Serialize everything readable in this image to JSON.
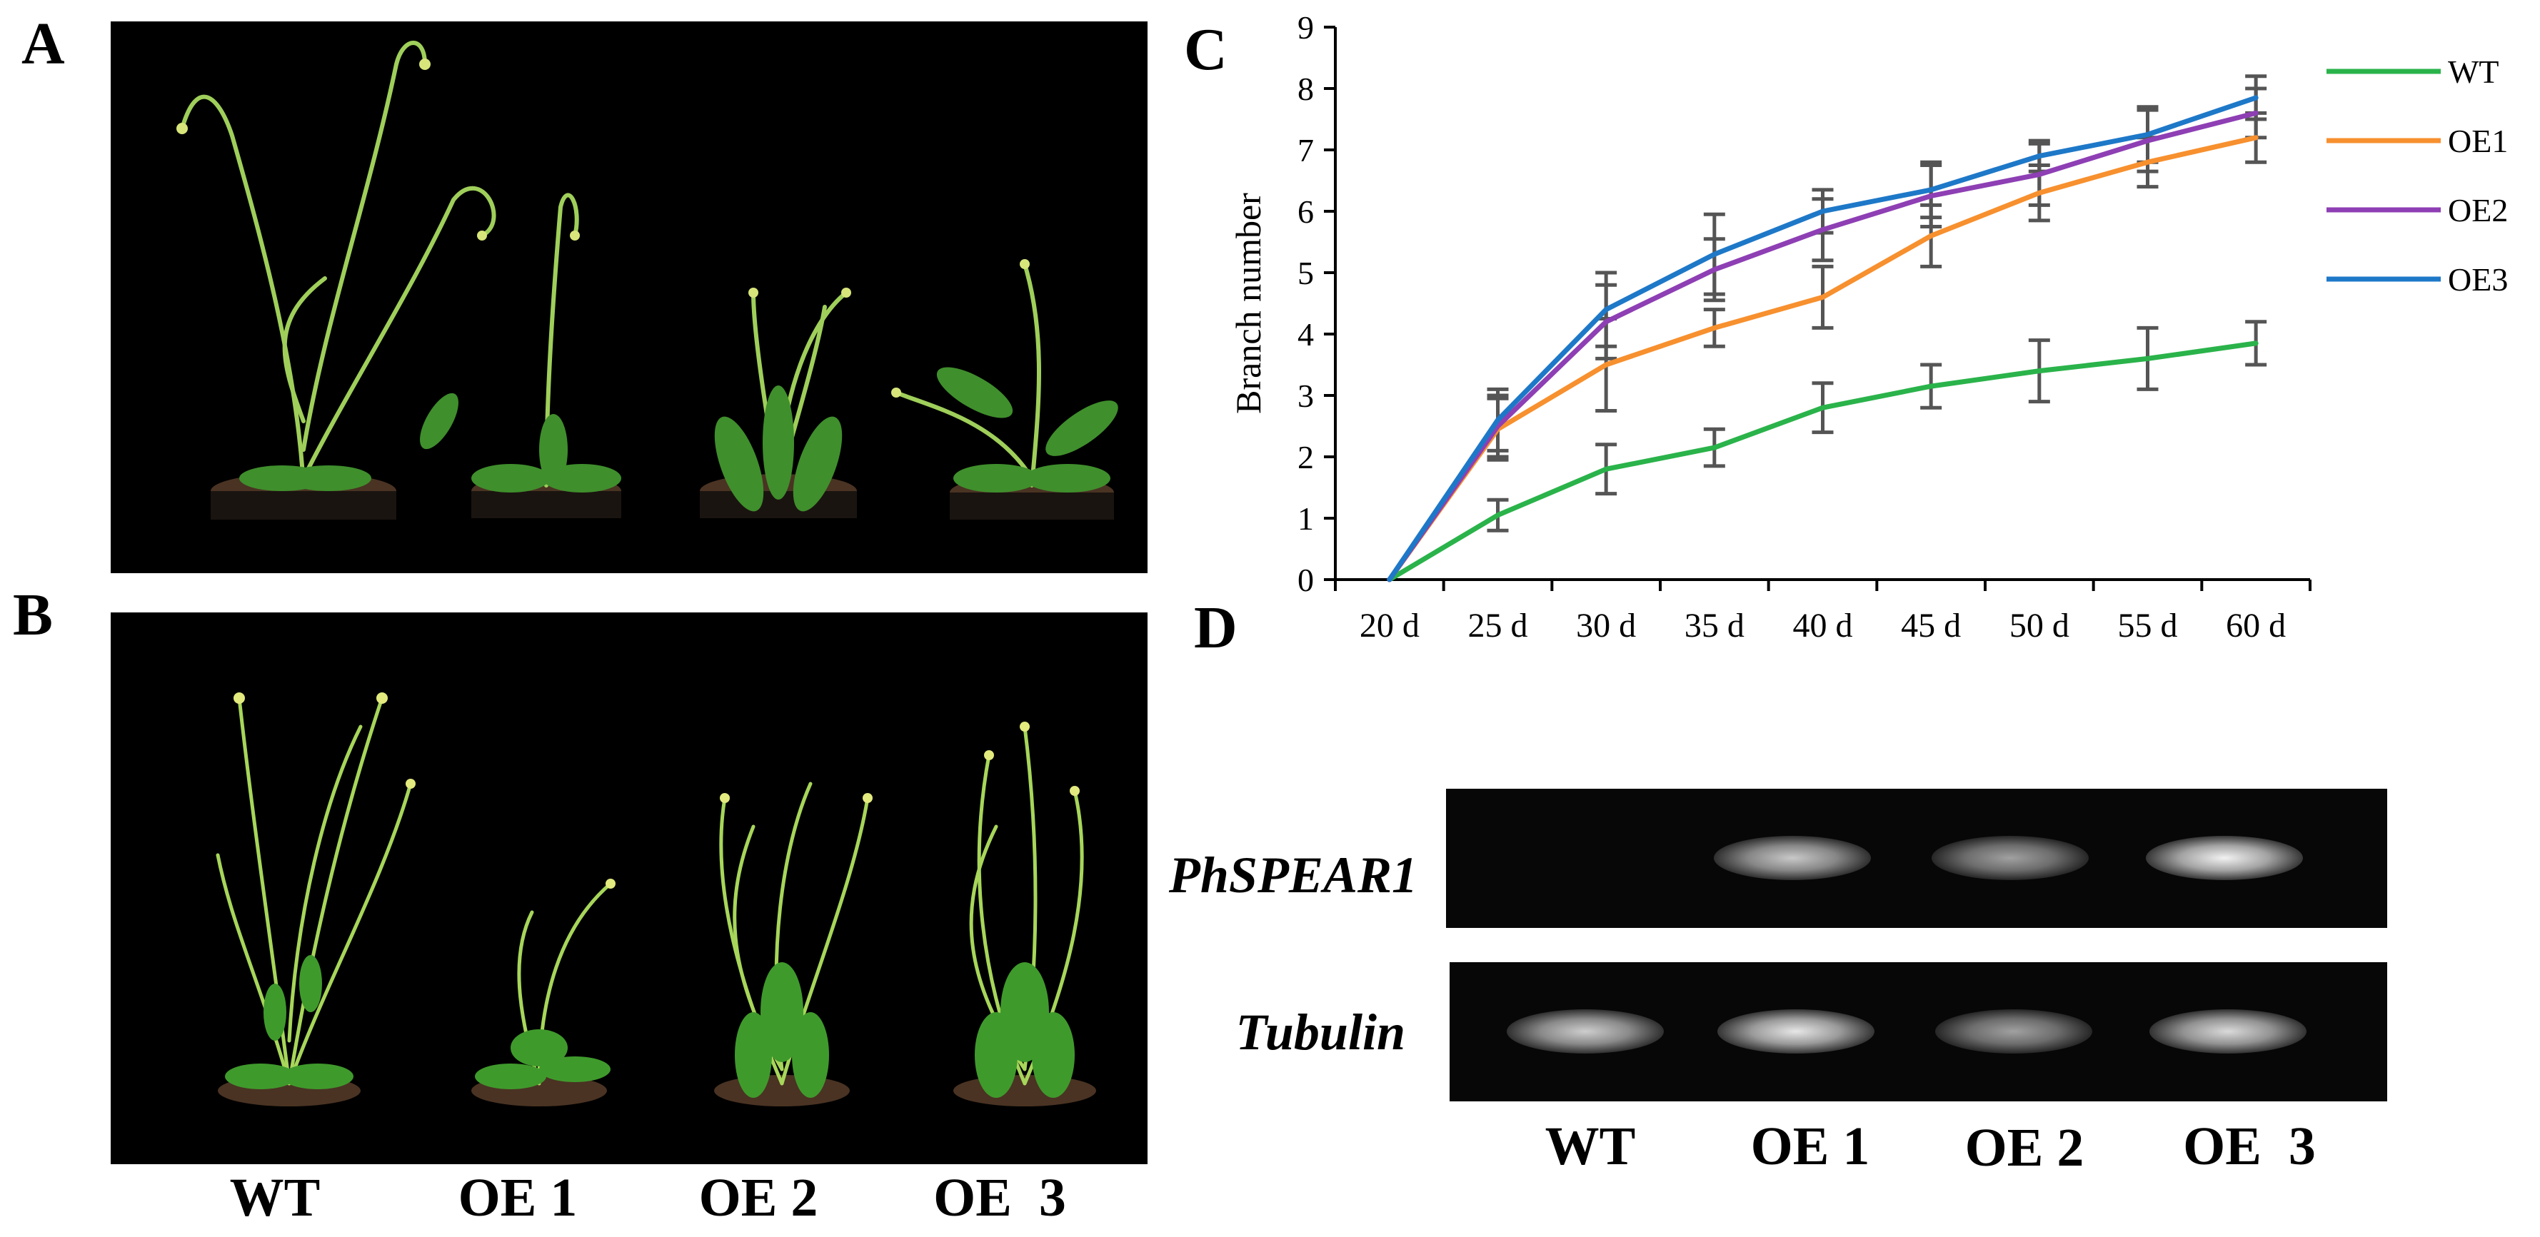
{
  "panels": {
    "a": "A",
    "b": "B",
    "c": "C",
    "d": "D"
  },
  "photo_labels": [
    "WT",
    "OE 1",
    "OE 2",
    "OE  3"
  ],
  "gel": {
    "genes": [
      "PhSPEAR1",
      "Tubulin"
    ],
    "lanes": [
      "WT",
      "OE 1",
      "OE 2",
      "OE  3"
    ],
    "band_intensity": {
      "PhSPEAR1": [
        0.0,
        0.78,
        0.62,
        0.95
      ],
      "Tubulin": [
        0.8,
        0.9,
        0.62,
        0.85
      ]
    }
  },
  "chart_data": {
    "type": "line",
    "title": "",
    "xlabel": "",
    "ylabel": "Branch number",
    "categories": [
      "20 d",
      "25 d",
      "30 d",
      "35 d",
      "40 d",
      "45 d",
      "50 d",
      "55 d",
      "60 d"
    ],
    "ylim": [
      0,
      9
    ],
    "yticks": [
      0,
      1,
      2,
      3,
      4,
      5,
      6,
      7,
      8,
      9
    ],
    "grid": false,
    "legend_position": "right",
    "series": [
      {
        "name": "WT",
        "color": "#2ab34a",
        "values": [
          0,
          1.05,
          1.8,
          2.15,
          2.8,
          3.15,
          3.4,
          3.6,
          3.85
        ],
        "errors": [
          0,
          0.25,
          0.4,
          0.3,
          0.4,
          0.35,
          0.5,
          0.5,
          0.35
        ]
      },
      {
        "name": "OE1",
        "color": "#f7902e",
        "values": [
          0,
          2.45,
          3.5,
          4.1,
          4.6,
          5.6,
          6.3,
          6.8,
          7.2
        ],
        "errors": [
          0,
          0.5,
          0.75,
          0.3,
          0.5,
          0.5,
          0.45,
          0.4,
          0.4
        ]
      },
      {
        "name": "OE2",
        "color": "#8e3fb4",
        "values": [
          0,
          2.5,
          4.2,
          5.05,
          5.7,
          6.25,
          6.6,
          7.15,
          7.6
        ],
        "errors": [
          0,
          0.5,
          0.6,
          0.5,
          0.5,
          0.5,
          0.5,
          0.5,
          0.4
        ]
      },
      {
        "name": "OE3",
        "color": "#1e78c8",
        "values": [
          0,
          2.6,
          4.4,
          5.3,
          6.0,
          6.35,
          6.9,
          7.25,
          7.85
        ],
        "errors": [
          0,
          0.5,
          0.6,
          0.65,
          0.35,
          0.45,
          0.25,
          0.45,
          0.35
        ]
      }
    ]
  }
}
